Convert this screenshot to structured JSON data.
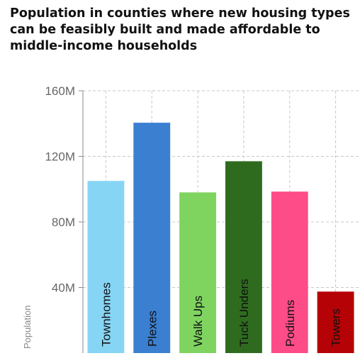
{
  "chart_data": {
    "type": "bar",
    "title": "Population in counties where new housing types can be feasibly built and made affordable to middle-income households",
    "ylabel": "Population",
    "xlabel": "",
    "categories": [
      "Townhomes",
      "Plexes",
      "Walk Ups",
      "Tuck Unders",
      "Podiums",
      "Towers"
    ],
    "values": [
      105000000,
      140500000,
      98000000,
      117000000,
      98500000,
      37500000
    ],
    "colors": [
      "#87d5f5",
      "#3b7fd1",
      "#7fd460",
      "#2e6b1f",
      "#fd4c88",
      "#b50206"
    ],
    "ylim": [
      0,
      160000000
    ],
    "yticks": [
      {
        "value": 40000000,
        "label": "40M"
      },
      {
        "value": 80000000,
        "label": "80M"
      },
      {
        "value": 120000000,
        "label": "120M"
      },
      {
        "value": 160000000,
        "label": "160M"
      }
    ],
    "grid": true,
    "legend": "none",
    "labels_inside_bars": true
  }
}
